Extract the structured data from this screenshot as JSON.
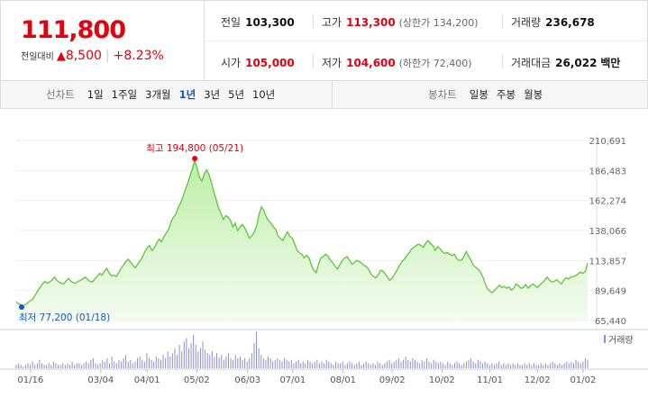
{
  "header": {
    "price": "111,800",
    "change_label": "전일대비",
    "change_arrow": "▲",
    "change_value": "8,500",
    "change_pct": "+8.23%",
    "prev_close_label": "전일",
    "prev_close": "103,300",
    "high_label": "고가",
    "high": "113,300",
    "upper_limit": "(상한가 134,200)",
    "volume_label": "거래량",
    "volume": "236,678",
    "open_label": "시가",
    "open": "105,000",
    "low_label": "저가",
    "low": "104,600",
    "lower_limit": "(하한가 72,400)",
    "amount_label": "거래대금",
    "amount": "26,022",
    "amount_unit": "백만"
  },
  "periods": {
    "label": "선차트",
    "items": [
      "1일",
      "1주일",
      "3개월",
      "1년",
      "3년",
      "5년",
      "10년"
    ],
    "selected": "1년"
  },
  "candles": {
    "label": "봉차트",
    "items": [
      "일봉",
      "주봉",
      "월봉"
    ]
  },
  "colors": {
    "up": "#e3000f",
    "down": "#1a56c7",
    "line": "#5ec43a",
    "volume": "#8a8fd0"
  },
  "chart_data": {
    "type": "area",
    "title": "",
    "ylim": [
      65440,
      210691
    ],
    "ytick_labels": [
      "210,691",
      "186,483",
      "162,274",
      "138,066",
      "113,857",
      "89,649",
      "65,440"
    ],
    "xtick_labels": [
      "01/16",
      "03/04",
      "04/01",
      "05/02",
      "06/03",
      "07/01",
      "08/01",
      "09/02",
      "10/02",
      "11/01",
      "12/02",
      "01/02"
    ],
    "annotations": {
      "high_text": "최고 194,800 (05/21)",
      "low_text": "최저 77,200 (01/18)"
    },
    "volume_legend": "거래량",
    "series": [
      {
        "values": [
          80500,
          79000,
          78000,
          77200,
          78500,
          80000,
          81500,
          83000,
          86000,
          89500,
          92000,
          95000,
          97000,
          95500,
          96500,
          98000,
          100500,
          98000,
          96500,
          95500,
          95000,
          97500,
          99500,
          97000,
          96000,
          95500,
          97000,
          98000,
          99000,
          100500,
          98500,
          97000,
          96500,
          99000,
          101000,
          103500,
          102000,
          105000,
          107500,
          104000,
          101500,
          102000,
          101000,
          104000,
          107500,
          110000,
          113000,
          115000,
          112500,
          110000,
          108000,
          111000,
          113500,
          116500,
          121000,
          124000,
          126000,
          122000,
          124000,
          128000,
          131000,
          129000,
          133000,
          136000,
          139000,
          145000,
          148500,
          151000,
          156500,
          160000,
          165000,
          171000,
          176000,
          182000,
          188000,
          194800,
          188000,
          181000,
          178000,
          184000,
          187000,
          183000,
          177000,
          169000,
          163000,
          156000,
          152000,
          147000,
          150000,
          149000,
          146000,
          141000,
          144000,
          138000,
          141000,
          143000,
          140000,
          136000,
          132000,
          134000,
          137000,
          142000,
          151000,
          157000,
          154500,
          149000,
          146000,
          144000,
          141000,
          139000,
          133500,
          131500,
          130000,
          134000,
          137000,
          133000,
          132000,
          127000,
          122000,
          120000,
          119000,
          116000,
          118000,
          116000,
          110000,
          106000,
          104000,
          111000,
          116000,
          117000,
          119000,
          117000,
          114000,
          112000,
          109000,
          107000,
          111000,
          114000,
          116000,
          117000,
          114000,
          111000,
          112000,
          114000,
          113000,
          112000,
          110000,
          109000,
          107000,
          103000,
          101000,
          100000,
          102000,
          106000,
          105500,
          103000,
          100000,
          98000,
          100000,
          103000,
          106500,
          110000,
          113000,
          115000,
          117500,
          120000,
          123000,
          124500,
          126000,
          127000,
          126000,
          124500,
          128000,
          130000,
          127500,
          126000,
          122000,
          125000,
          123500,
          121000,
          119500,
          120500,
          119000,
          118000,
          119000,
          115500,
          114000,
          114000,
          117000,
          121000,
          117500,
          114000,
          110000,
          108500,
          107000,
          104500,
          100500,
          95000,
          91000,
          89000,
          88000,
          90000,
          92000,
          94000,
          92000,
          93000,
          91500,
          92500,
          90000,
          91500,
          95000,
          93500,
          91500,
          92000,
          94500,
          91500,
          93500,
          95000,
          93500,
          92000,
          94500,
          96000,
          98000,
          100500,
          98000,
          96500,
          97000,
          98500,
          96500,
          95000,
          98000,
          100000,
          99000,
          100500,
          101000,
          101500,
          103000,
          104500,
          103500,
          105000,
          111800
        ]
      }
    ],
    "volume": {
      "axis_label": "거래량",
      "values": [
        2,
        3,
        2,
        1,
        2,
        3,
        2,
        4,
        2,
        3,
        5,
        3,
        2,
        2,
        3,
        2,
        4,
        3,
        2,
        2,
        3,
        2,
        3,
        2,
        4,
        2,
        3,
        3,
        2,
        3,
        4,
        3,
        5,
        6,
        3,
        2,
        3,
        5,
        4,
        6,
        3,
        7,
        4,
        3,
        5,
        4,
        6,
        8,
        4,
        5,
        3,
        4,
        6,
        7,
        5,
        4,
        9,
        6,
        5,
        4,
        7,
        6,
        5,
        8,
        6,
        10,
        7,
        9,
        12,
        8,
        14,
        10,
        16,
        18,
        12,
        15,
        20,
        14,
        10,
        12,
        16,
        11,
        9,
        8,
        10,
        7,
        9,
        6,
        8,
        5,
        7,
        9,
        6,
        5,
        8,
        6,
        7,
        5,
        6,
        4,
        6,
        9,
        15,
        22,
        12,
        8,
        6,
        5,
        7,
        6,
        4,
        5,
        6,
        5,
        4,
        6,
        5,
        4,
        5,
        3,
        4,
        5,
        3,
        4,
        3,
        5,
        4,
        3,
        4,
        5,
        3,
        4,
        3,
        5,
        4,
        3,
        2,
        4,
        3,
        3,
        4,
        2,
        3,
        4,
        3,
        2,
        3,
        4,
        2,
        3,
        4,
        3,
        2,
        3,
        2,
        4,
        3,
        2,
        3,
        4,
        5,
        3,
        4,
        5,
        6,
        4,
        5,
        7,
        5,
        4,
        6,
        5,
        4,
        3,
        5,
        4,
        6,
        4,
        3,
        5,
        4,
        3,
        4,
        3,
        2,
        4,
        3,
        2,
        3,
        4,
        3,
        2,
        3,
        4,
        5,
        6,
        4,
        3,
        5,
        4,
        3,
        4,
        3,
        2,
        3,
        2,
        3,
        4,
        2,
        3,
        2,
        3,
        2,
        3,
        2,
        3,
        2,
        2,
        3,
        2,
        3,
        2,
        3,
        2,
        2,
        3,
        2,
        3,
        2,
        3,
        4,
        3,
        2,
        3,
        2,
        3,
        4,
        3,
        4,
        3,
        5,
        4,
        3,
        4,
        6,
        5
      ]
    }
  }
}
